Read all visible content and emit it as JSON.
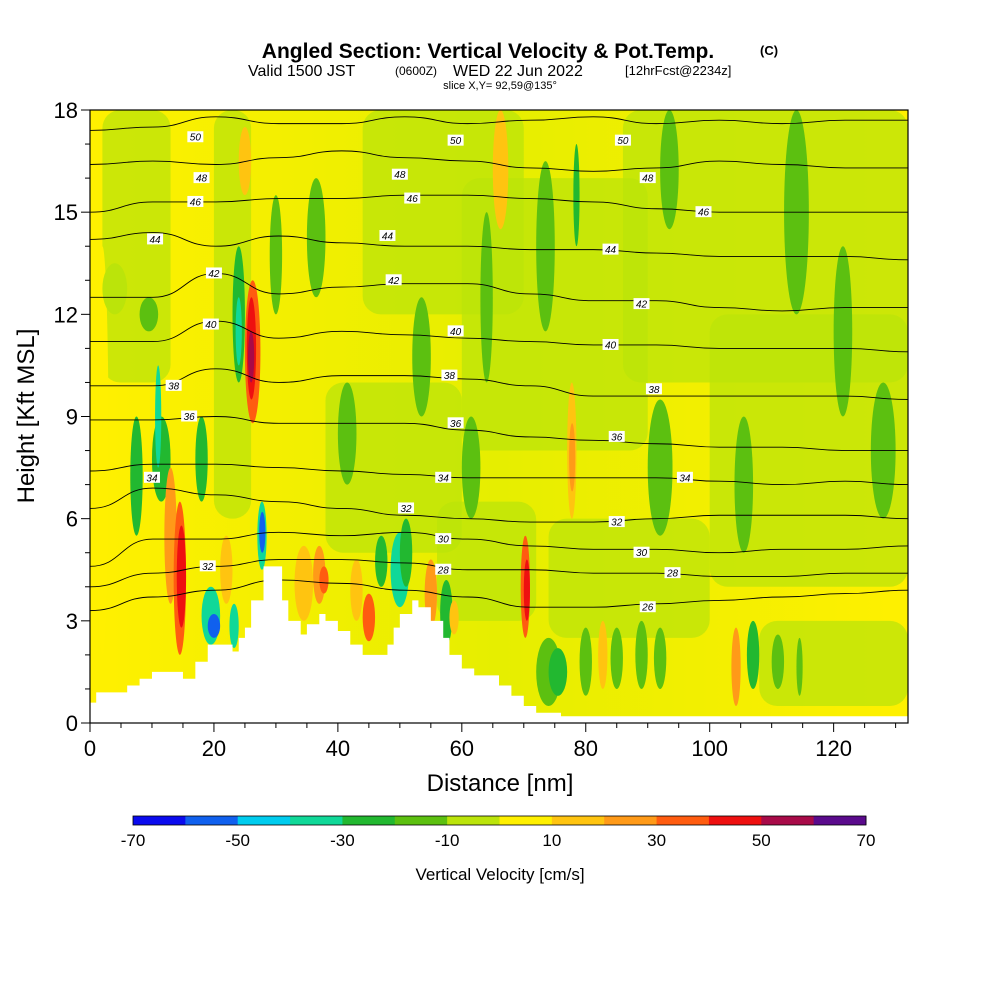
{
  "title": {
    "main": "Angled Section: Vertical Velocity & Pot.Temp.",
    "main_units": "(C)",
    "valid_a": "Valid 1500 JST",
    "valid_b": "(0600Z)",
    "valid_c": "WED 22 Jun 2022",
    "valid_d": "[12hrFcst@2234z]",
    "slice": "slice X,Y= 92,59@135°"
  },
  "chart_data": {
    "type": "heatmap",
    "xlabel": "Distance [nm]",
    "ylabel": "Height [Kft MSL]",
    "xlim": [
      0,
      132
    ],
    "ylim": [
      0,
      18
    ],
    "x_ticks": [
      "0",
      "20",
      "40",
      "60",
      "80",
      "100",
      "120"
    ],
    "y_ticks": [
      "0",
      "3",
      "6",
      "9",
      "12",
      "15",
      "18"
    ],
    "grid": false,
    "colorbar": {
      "label": "Vertical Velocity [cm/s]",
      "tick_labels": [
        "-70",
        "-50",
        "-30",
        "-10",
        "10",
        "30",
        "50",
        "70"
      ],
      "bins": [
        -70,
        -60,
        -50,
        -40,
        -30,
        -20,
        -10,
        10,
        20,
        30,
        40,
        50,
        60,
        70
      ],
      "colors": [
        "#0a0aee",
        "#1060ee",
        "#00ccee",
        "#10d898",
        "#22b830",
        "#5cc010",
        "#bbe40a",
        "#fff000",
        "#ffc410",
        "#ff9a18",
        "#ff5c10",
        "#ee1010",
        "#a80a48",
        "#5a0a8c"
      ]
    },
    "terrain": [
      [
        0,
        0.6
      ],
      [
        1,
        0.9
      ],
      [
        3,
        0.9
      ],
      [
        6,
        1.1
      ],
      [
        8,
        1.3
      ],
      [
        10,
        1.5
      ],
      [
        13,
        1.5
      ],
      [
        15,
        1.3
      ],
      [
        17,
        1.8
      ],
      [
        19,
        2.3
      ],
      [
        22,
        2.3
      ],
      [
        23,
        2.1
      ],
      [
        24,
        2.5
      ],
      [
        25,
        2.8
      ],
      [
        26,
        3.6
      ],
      [
        28,
        4.6
      ],
      [
        30,
        4.6
      ],
      [
        31,
        3.6
      ],
      [
        32,
        3.0
      ],
      [
        34,
        2.6
      ],
      [
        35,
        2.9
      ],
      [
        37,
        3.2
      ],
      [
        38,
        3.0
      ],
      [
        40,
        2.7
      ],
      [
        42,
        2.3
      ],
      [
        44,
        2.0
      ],
      [
        47,
        2.0
      ],
      [
        48,
        2.3
      ],
      [
        49,
        2.8
      ],
      [
        50,
        3.2
      ],
      [
        52,
        3.6
      ],
      [
        53,
        3.4
      ],
      [
        55,
        3.0
      ],
      [
        57,
        2.5
      ],
      [
        58,
        2.0
      ],
      [
        60,
        1.6
      ],
      [
        62,
        1.4
      ],
      [
        64,
        1.4
      ],
      [
        66,
        1.1
      ],
      [
        68,
        0.8
      ],
      [
        70,
        0.5
      ],
      [
        72,
        0.3
      ],
      [
        76,
        0.2
      ],
      [
        80,
        0.2
      ],
      [
        90,
        0.2
      ],
      [
        100,
        0.2
      ],
      [
        110,
        0.2
      ],
      [
        120,
        0.2
      ],
      [
        132,
        0.2
      ]
    ],
    "theta_contours": [
      {
        "value": 50,
        "heights": [
          17.4,
          17.5,
          17.8,
          17.6,
          17.6,
          17.8,
          17.6,
          17.7,
          17.8,
          17.6,
          17.7,
          17.6,
          17.7,
          17.7
        ]
      },
      {
        "value": 48,
        "heights": [
          16.4,
          16.5,
          16.4,
          16.6,
          16.8,
          16.6,
          16.5,
          16.3,
          16.2,
          16.3,
          16.5,
          16.4,
          16.3,
          16.3
        ]
      },
      {
        "value": 46,
        "heights": [
          15.0,
          15.3,
          15.3,
          15.4,
          15.4,
          15.5,
          15.5,
          15.4,
          15.3,
          15.1,
          15.0,
          15.0,
          15.0,
          15.0
        ]
      },
      {
        "value": 44,
        "heights": [
          14.2,
          14.4,
          14.0,
          14.3,
          14.1,
          14.0,
          14.0,
          13.9,
          13.9,
          13.8,
          13.7,
          13.7,
          13.7,
          13.6
        ]
      },
      {
        "value": 42,
        "heights": [
          12.5,
          12.5,
          13.2,
          12.6,
          12.8,
          12.9,
          12.9,
          12.6,
          12.4,
          12.4,
          12.2,
          12.1,
          12.2,
          12.2
        ]
      },
      {
        "value": 40,
        "heights": [
          11.2,
          11.2,
          11.8,
          11.3,
          11.5,
          11.4,
          11.3,
          11.2,
          11.1,
          11.1,
          11.0,
          11.0,
          11.0,
          10.9
        ]
      },
      {
        "value": 38,
        "heights": [
          9.9,
          9.9,
          10.4,
          10.0,
          10.2,
          10.2,
          10.1,
          9.9,
          9.6,
          9.6,
          9.6,
          9.6,
          9.6,
          9.5
        ]
      },
      {
        "value": 36,
        "heights": [
          8.9,
          8.9,
          9.0,
          8.8,
          8.8,
          8.8,
          8.6,
          8.4,
          8.3,
          8.2,
          8.1,
          8.1,
          8.0,
          8.0
        ]
      },
      {
        "value": 34,
        "heights": [
          7.4,
          7.6,
          7.6,
          7.5,
          7.4,
          7.3,
          7.2,
          7.2,
          7.2,
          7.2,
          7.1,
          7.0,
          7.1,
          7.0
        ]
      },
      {
        "value": 32,
        "heights": [
          6.3,
          6.9,
          6.7,
          6.5,
          6.3,
          6.1,
          6.0,
          5.9,
          5.9,
          6.0,
          6.1,
          6.1,
          6.1,
          6.0
        ]
      },
      {
        "value": 30,
        "heights": [
          4.6,
          5.4,
          5.4,
          5.6,
          5.5,
          5.6,
          5.4,
          5.2,
          5.1,
          5.1,
          5.0,
          5.1,
          5.1,
          5.2
        ]
      },
      {
        "value": 28,
        "heights": [
          4.0,
          4.4,
          4.6,
          4.8,
          4.8,
          4.7,
          4.5,
          4.5,
          4.4,
          4.4,
          4.3,
          4.3,
          4.4,
          4.4
        ]
      },
      {
        "value": 26,
        "heights": [
          3.3,
          3.7,
          3.9,
          4.2,
          4.1,
          3.9,
          3.7,
          3.4,
          3.4,
          3.5,
          3.6,
          3.7,
          3.8,
          3.9
        ]
      }
    ],
    "contour_labels": [
      {
        "text": "50",
        "x": 17,
        "y": 17.2
      },
      {
        "text": "50",
        "x": 59,
        "y": 17.1
      },
      {
        "text": "50",
        "x": 86,
        "y": 17.1
      },
      {
        "text": "48",
        "x": 18,
        "y": 16.0
      },
      {
        "text": "48",
        "x": 50,
        "y": 16.1
      },
      {
        "text": "48",
        "x": 90,
        "y": 16.0
      },
      {
        "text": "46",
        "x": 17,
        "y": 15.3
      },
      {
        "text": "46",
        "x": 52,
        "y": 15.4
      },
      {
        "text": "46",
        "x": 99,
        "y": 15.0
      },
      {
        "text": "44",
        "x": 10.5,
        "y": 14.2
      },
      {
        "text": "44",
        "x": 48,
        "y": 14.3
      },
      {
        "text": "44",
        "x": 84,
        "y": 13.9
      },
      {
        "text": "42",
        "x": 20,
        "y": 13.2
      },
      {
        "text": "42",
        "x": 49,
        "y": 13.0
      },
      {
        "text": "42",
        "x": 89,
        "y": 12.3
      },
      {
        "text": "40",
        "x": 19.5,
        "y": 11.7
      },
      {
        "text": "40",
        "x": 59,
        "y": 11.5
      },
      {
        "text": "40",
        "x": 84,
        "y": 11.1
      },
      {
        "text": "38",
        "x": 13.5,
        "y": 9.9
      },
      {
        "text": "38",
        "x": 58,
        "y": 10.2
      },
      {
        "text": "38",
        "x": 91,
        "y": 9.8
      },
      {
        "text": "36",
        "x": 16,
        "y": 9.0
      },
      {
        "text": "36",
        "x": 59,
        "y": 8.8
      },
      {
        "text": "36",
        "x": 85,
        "y": 8.4
      },
      {
        "text": "34",
        "x": 10,
        "y": 7.2
      },
      {
        "text": "34",
        "x": 57,
        "y": 7.2
      },
      {
        "text": "34",
        "x": 96,
        "y": 7.2
      },
      {
        "text": "32",
        "x": 51,
        "y": 6.3
      },
      {
        "text": "32",
        "x": 85,
        "y": 5.9
      },
      {
        "text": "32",
        "x": 19,
        "y": 4.6
      },
      {
        "text": "30",
        "x": 57,
        "y": 5.4
      },
      {
        "text": "30",
        "x": 89,
        "y": 5.0
      },
      {
        "text": "28",
        "x": 57,
        "y": 4.5
      },
      {
        "text": "28",
        "x": 94,
        "y": 4.4
      },
      {
        "text": "26",
        "x": 90,
        "y": 3.4
      }
    ],
    "velocity_cells": [
      {
        "x": 1,
        "w": 2,
        "y0": 2.0,
        "y1": 14.0,
        "v": 10
      },
      {
        "x": 8,
        "w": 3,
        "y0": 11.5,
        "y1": 12.5,
        "v": -15
      },
      {
        "x": 2,
        "w": 4,
        "y0": 12.0,
        "y1": 13.5,
        "v": -10
      },
      {
        "x": 6.5,
        "w": 2,
        "y0": 5.5,
        "y1": 9.0,
        "v": -25
      },
      {
        "x": 10,
        "w": 3,
        "y0": 6.5,
        "y1": 9.0,
        "v": -25
      },
      {
        "x": 12,
        "w": 2,
        "y0": 3.5,
        "y1": 7.5,
        "v": 30
      },
      {
        "x": 13.5,
        "w": 2,
        "y0": 2.0,
        "y1": 6.5,
        "v": 45
      },
      {
        "x": 14,
        "w": 1.5,
        "y0": 2.8,
        "y1": 5.8,
        "v": 55
      },
      {
        "x": 10.5,
        "w": 1,
        "y0": 7.5,
        "y1": 10.5,
        "v": -35
      },
      {
        "x": 17,
        "w": 2,
        "y0": 6.5,
        "y1": 9.0,
        "v": -25
      },
      {
        "x": 18,
        "w": 3,
        "y0": 2.3,
        "y1": 4.0,
        "v": -35
      },
      {
        "x": 19,
        "w": 2,
        "y0": 2.5,
        "y1": 3.2,
        "v": -60
      },
      {
        "x": 21,
        "w": 2,
        "y0": 3.5,
        "y1": 5.5,
        "v": 25
      },
      {
        "x": 22.5,
        "w": 1.5,
        "y0": 2.2,
        "y1": 3.5,
        "v": -35
      },
      {
        "x": 23,
        "w": 2,
        "y0": 10.0,
        "y1": 14.0,
        "v": -25
      },
      {
        "x": 23.5,
        "w": 1,
        "y0": 10.5,
        "y1": 12.5,
        "v": -40
      },
      {
        "x": 25,
        "w": 2.5,
        "y0": 8.8,
        "y1": 13.0,
        "v": 40
      },
      {
        "x": 25.3,
        "w": 1.5,
        "y0": 9.5,
        "y1": 12.5,
        "v": 55
      },
      {
        "x": 25.5,
        "w": 1,
        "y0": 10.0,
        "y1": 11.5,
        "v": 65
      },
      {
        "x": 24,
        "w": 2,
        "y0": 15.5,
        "y1": 17.5,
        "v": 25
      },
      {
        "x": 27,
        "w": 1.5,
        "y0": 4.5,
        "y1": 6.5,
        "v": -40
      },
      {
        "x": 27.3,
        "w": 1,
        "y0": 5.0,
        "y1": 6.2,
        "v": -60
      },
      {
        "x": 29,
        "w": 2,
        "y0": 12.0,
        "y1": 15.5,
        "v": -15
      },
      {
        "x": 33,
        "w": 3,
        "y0": 3.0,
        "y1": 5.2,
        "v": 25
      },
      {
        "x": 36,
        "w": 2,
        "y0": 3.5,
        "y1": 5.2,
        "v": 35
      },
      {
        "x": 37,
        "w": 1.5,
        "y0": 3.8,
        "y1": 4.6,
        "v": 45
      },
      {
        "x": 42,
        "w": 2,
        "y0": 3.0,
        "y1": 4.8,
        "v": 25
      },
      {
        "x": 44,
        "w": 2,
        "y0": 2.4,
        "y1": 3.8,
        "v": 40
      },
      {
        "x": 46,
        "w": 2,
        "y0": 4.0,
        "y1": 5.5,
        "v": -25
      },
      {
        "x": 48.5,
        "w": 3,
        "y0": 3.4,
        "y1": 5.6,
        "v": -35
      },
      {
        "x": 50,
        "w": 2,
        "y0": 4.0,
        "y1": 6.0,
        "v": -25
      },
      {
        "x": 54,
        "w": 2,
        "y0": 2.8,
        "y1": 4.8,
        "v": 30
      },
      {
        "x": 56.5,
        "w": 2,
        "y0": 2.3,
        "y1": 4.2,
        "v": -30
      },
      {
        "x": 58,
        "w": 1.5,
        "y0": 2.6,
        "y1": 3.6,
        "v": 25
      },
      {
        "x": 63,
        "w": 2,
        "y0": 10.0,
        "y1": 15.0,
        "v": -15
      },
      {
        "x": 65,
        "w": 2.5,
        "y0": 14.5,
        "y1": 18.0,
        "v": 25
      },
      {
        "x": 69.5,
        "w": 1.5,
        "y0": 2.5,
        "y1": 5.5,
        "v": 45
      },
      {
        "x": 70,
        "w": 1,
        "y0": 3.0,
        "y1": 4.8,
        "v": 55
      },
      {
        "x": 72,
        "w": 3,
        "y0": 11.5,
        "y1": 16.5,
        "v": -15
      },
      {
        "x": 77,
        "w": 1.5,
        "y0": 6.0,
        "y1": 10.0,
        "v": 25
      },
      {
        "x": 77.3,
        "w": 1,
        "y0": 6.8,
        "y1": 8.8,
        "v": 35
      },
      {
        "x": 78,
        "w": 1,
        "y0": 14.0,
        "y1": 17.0,
        "v": -25
      },
      {
        "x": 72,
        "w": 4,
        "y0": 0.5,
        "y1": 2.5,
        "v": -15
      },
      {
        "x": 74,
        "w": 3,
        "y0": 0.8,
        "y1": 2.2,
        "v": -25
      },
      {
        "x": 79,
        "w": 2,
        "y0": 0.8,
        "y1": 2.8,
        "v": -15
      },
      {
        "x": 82,
        "w": 1.5,
        "y0": 1.0,
        "y1": 3.0,
        "v": 25
      },
      {
        "x": 84,
        "w": 2,
        "y0": 1.0,
        "y1": 2.8,
        "v": -15
      },
      {
        "x": 88,
        "w": 2,
        "y0": 1.0,
        "y1": 3.0,
        "v": -15
      },
      {
        "x": 91,
        "w": 2,
        "y0": 1.0,
        "y1": 2.8,
        "v": -15
      },
      {
        "x": 92,
        "w": 3,
        "y0": 14.5,
        "y1": 18.0,
        "v": -15
      },
      {
        "x": 103.5,
        "w": 1.5,
        "y0": 0.5,
        "y1": 2.8,
        "v": 35
      },
      {
        "x": 106,
        "w": 2,
        "y0": 1.0,
        "y1": 3.0,
        "v": -25
      },
      {
        "x": 110,
        "w": 2,
        "y0": 1.0,
        "y1": 2.6,
        "v": -15
      },
      {
        "x": 114,
        "w": 1,
        "y0": 0.8,
        "y1": 2.5,
        "v": -15
      },
      {
        "x": 112,
        "w": 4,
        "y0": 12.0,
        "y1": 18.0,
        "v": -15
      },
      {
        "x": 120,
        "w": 3,
        "y0": 9.0,
        "y1": 14.0,
        "v": -15
      },
      {
        "x": 126,
        "w": 4,
        "y0": 6.0,
        "y1": 10.0,
        "v": -15
      },
      {
        "x": 104,
        "w": 3,
        "y0": 5.0,
        "y1": 9.0,
        "v": -15
      },
      {
        "x": 90,
        "w": 4,
        "y0": 5.5,
        "y1": 9.5,
        "v": -15
      },
      {
        "x": 60,
        "w": 3,
        "y0": 6.0,
        "y1": 9.0,
        "v": -15
      },
      {
        "x": 40,
        "w": 3,
        "y0": 7.0,
        "y1": 10.0,
        "v": -15
      },
      {
        "x": 35,
        "w": 3,
        "y0": 12.5,
        "y1": 16.0,
        "v": -15
      },
      {
        "x": 52,
        "w": 3,
        "y0": 9.0,
        "y1": 12.5,
        "v": -15
      }
    ]
  }
}
